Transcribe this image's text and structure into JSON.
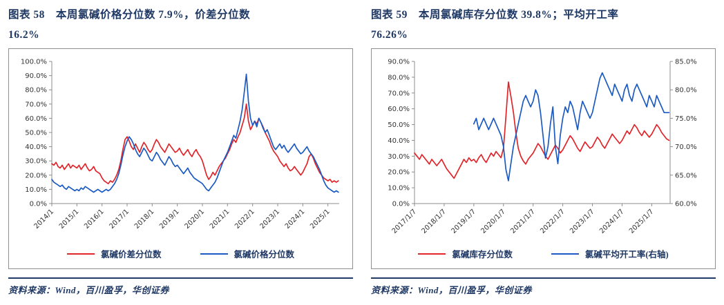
{
  "panels": [
    {
      "title_line1": "图表 58　本周氯碱价格分位数 7.9%，价差分位数",
      "title_line2": "16.2%",
      "source": "资料来源：Wind，百川盈孚，华创证券"
    },
    {
      "title_line1": "图表 59　本周氯碱库存分位数 39.8%；平均开工率",
      "title_line2": "76.26%",
      "source": "资料来源：Wind，百川盈孚，华创证券"
    }
  ],
  "chart_data": [
    {
      "type": "line",
      "x_min": 2014,
      "x_max": 2025.45,
      "y_left": {
        "min": 0,
        "max": 100,
        "step": 10
      },
      "x_ticks": [
        {
          "v": 2014,
          "label": "2014/1"
        },
        {
          "v": 2015,
          "label": "2015/1"
        },
        {
          "v": 2016,
          "label": "2016/1"
        },
        {
          "v": 2017,
          "label": "2017/1"
        },
        {
          "v": 2018,
          "label": "2018/1"
        },
        {
          "v": 2019,
          "label": "2019/1"
        },
        {
          "v": 2020,
          "label": "2020/1"
        },
        {
          "v": 2021,
          "label": "2021/1"
        },
        {
          "v": 2022,
          "label": "2022/1"
        },
        {
          "v": 2023,
          "label": "2023/1"
        },
        {
          "v": 2024,
          "label": "2024/1"
        },
        {
          "v": 2025,
          "label": "2025/1"
        }
      ],
      "series": [
        {
          "name": "氯碱价差分位数",
          "color": "#e1242a",
          "axis": "left",
          "x_start": 2014,
          "x_step": 0.0833333,
          "values": [
            28,
            27,
            29,
            26,
            25,
            27,
            24,
            26,
            28,
            25,
            27,
            26,
            25,
            27,
            24,
            26,
            28,
            25,
            23,
            24,
            26,
            23,
            22,
            21,
            18,
            16,
            15,
            14,
            16,
            15,
            17,
            20,
            24,
            30,
            38,
            45,
            47,
            44,
            40,
            38,
            42,
            39,
            36,
            40,
            43,
            41,
            38,
            36,
            38,
            42,
            45,
            43,
            40,
            38,
            36,
            39,
            42,
            40,
            38,
            36,
            37,
            39,
            36,
            34,
            36,
            38,
            35,
            33,
            36,
            38,
            35,
            33,
            30,
            25,
            20,
            17,
            19,
            22,
            20,
            23,
            26,
            28,
            30,
            32,
            35,
            38,
            42,
            45,
            43,
            47,
            50,
            55,
            60,
            70,
            58,
            52,
            55,
            58,
            56,
            60,
            57,
            54,
            50,
            47,
            44,
            40,
            37,
            35,
            33,
            30,
            28,
            26,
            28,
            25,
            23,
            24,
            26,
            24,
            22,
            20,
            22,
            25,
            28,
            33,
            35,
            32,
            28,
            25,
            22,
            20,
            18,
            17,
            16,
            17,
            15,
            16,
            15,
            16
          ]
        },
        {
          "name": "氯碱价格分位数",
          "color": "#1b5ac2",
          "axis": "left",
          "x_start": 2014,
          "x_step": 0.0833333,
          "values": [
            17,
            15,
            14,
            13,
            12,
            13,
            11,
            10,
            12,
            11,
            10,
            9,
            10,
            9,
            11,
            10,
            12,
            11,
            10,
            9,
            8,
            9,
            10,
            9,
            8,
            9,
            10,
            9,
            10,
            12,
            14,
            17,
            21,
            27,
            34,
            40,
            44,
            47,
            45,
            42,
            38,
            35,
            33,
            36,
            39,
            37,
            34,
            31,
            30,
            33,
            36,
            34,
            31,
            29,
            27,
            30,
            33,
            31,
            28,
            26,
            27,
            25,
            23,
            21,
            23,
            25,
            22,
            20,
            18,
            17,
            16,
            15,
            14,
            12,
            10,
            9,
            11,
            13,
            15,
            18,
            22,
            26,
            30,
            33,
            36,
            40,
            44,
            48,
            46,
            52,
            58,
            66,
            78,
            91,
            72,
            60,
            55,
            58,
            54,
            60,
            57,
            53,
            50,
            52,
            48,
            44,
            40,
            38,
            40,
            42,
            39,
            41,
            38,
            36,
            38,
            40,
            42,
            39,
            37,
            35,
            36,
            38,
            40,
            37,
            35,
            33,
            30,
            27,
            24,
            20,
            16,
            13,
            11,
            10,
            9,
            8,
            9,
            8
          ]
        }
      ]
    },
    {
      "type": "line",
      "x_min": 2017,
      "x_max": 2025.62,
      "y_left": {
        "min": 0,
        "max": 90,
        "step": 10
      },
      "y_right": {
        "min": 60,
        "max": 85,
        "step": 5
      },
      "x_ticks": [
        {
          "v": 2017,
          "label": "2017/1/7"
        },
        {
          "v": 2018,
          "label": "2018/1/7"
        },
        {
          "v": 2019,
          "label": "2019/1/7"
        },
        {
          "v": 2020,
          "label": "2020/1/7"
        },
        {
          "v": 2021,
          "label": "2021/1/7"
        },
        {
          "v": 2022,
          "label": "2022/1/7"
        },
        {
          "v": 2023,
          "label": "2023/1/7"
        },
        {
          "v": 2024,
          "label": "2024/1/7"
        },
        {
          "v": 2025,
          "label": "2025/1/7"
        }
      ],
      "series": [
        {
          "name": "氯碱库存分位数",
          "color": "#e1242a",
          "axis": "left",
          "x_start": 2017,
          "x_step": 0.0833333,
          "values": [
            32,
            30,
            28,
            31,
            29,
            27,
            25,
            28,
            26,
            24,
            26,
            28,
            25,
            22,
            20,
            18,
            16,
            19,
            22,
            25,
            28,
            26,
            29,
            27,
            28,
            26,
            29,
            31,
            28,
            26,
            29,
            32,
            30,
            33,
            31,
            29,
            35,
            55,
            77,
            68,
            58,
            45,
            35,
            30,
            27,
            25,
            28,
            30,
            32,
            35,
            38,
            36,
            33,
            30,
            28,
            31,
            34,
            37,
            35,
            32,
            34,
            37,
            40,
            43,
            41,
            38,
            35,
            33,
            36,
            39,
            37,
            35,
            36,
            39,
            42,
            40,
            37,
            35,
            38,
            41,
            44,
            42,
            40,
            38,
            40,
            43,
            46,
            44,
            47,
            50,
            48,
            45,
            43,
            46,
            44,
            42,
            44,
            47,
            50,
            48,
            45,
            43,
            41,
            40
          ]
        },
        {
          "name": "氯碱平均开工率(右轴)",
          "color": "#1b5ac2",
          "axis": "right",
          "x_start": 2019,
          "x_step": 0.0833333,
          "values": [
            74,
            75,
            73,
            74,
            75,
            74,
            73,
            74,
            75,
            74,
            73,
            72,
            70,
            66,
            64,
            67,
            70,
            72,
            74,
            76,
            78,
            79,
            78,
            77,
            78,
            80,
            79,
            76,
            72,
            68,
            70,
            74,
            77,
            70,
            67,
            72,
            75,
            77,
            76,
            78,
            77,
            75,
            73,
            76,
            78,
            77,
            76,
            75,
            76,
            78,
            80,
            82,
            83,
            82,
            81,
            80,
            79,
            81,
            80,
            79,
            78,
            80,
            81,
            79,
            78,
            80,
            81,
            80,
            79,
            78,
            77,
            79,
            78,
            77,
            79,
            78,
            77,
            76,
            76,
            76
          ]
        }
      ]
    }
  ]
}
